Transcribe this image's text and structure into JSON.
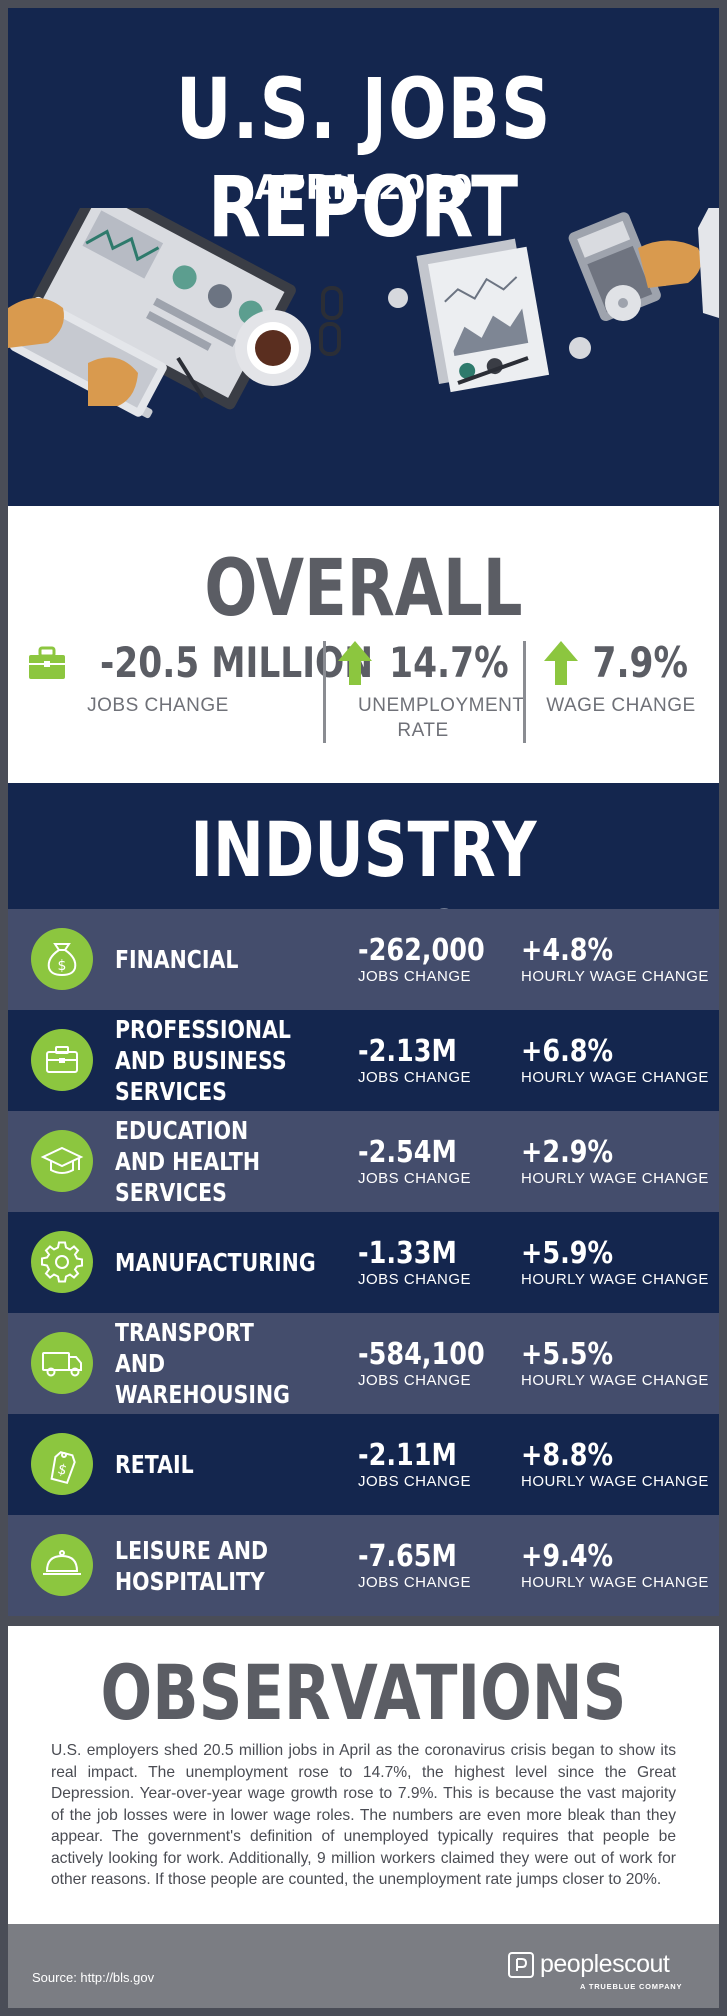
{
  "header": {
    "title": "U.S. JOBS REPORT",
    "subtitle": "APRIL 2020"
  },
  "overall": {
    "title": "OVERALL",
    "stats": [
      {
        "value": "-20.5 MILLION",
        "label": "JOBS CHANGE",
        "icon": "briefcase-icon"
      },
      {
        "value": "14.7%",
        "label": "UNEMPLOYMENT RATE",
        "icon": "arrow-up-icon"
      },
      {
        "value": "7.9%",
        "label": "WAGE CHANGE",
        "icon": "arrow-up-icon"
      }
    ]
  },
  "industry": {
    "title": "INDUSTRY BREAKDOWN",
    "jobs_label": "JOBS CHANGE",
    "wage_label": "HOURLY WAGE CHANGE",
    "rows": [
      {
        "name": "FINANCIAL",
        "jobs": "-262,000",
        "wage": "+4.8%",
        "icon": "money-bag-icon"
      },
      {
        "name": "PROFESSIONAL AND BUSINESS SERVICES",
        "jobs": "-2.13M",
        "wage": "+6.8%",
        "icon": "briefcase-icon"
      },
      {
        "name": "EDUCATION AND HEALTH SERVICES",
        "jobs": "-2.54M",
        "wage": "+2.9%",
        "icon": "graduation-cap-icon"
      },
      {
        "name": "MANUFACTURING",
        "jobs": "-1.33M",
        "wage": "+5.9%",
        "icon": "gear-icon"
      },
      {
        "name": "TRANSPORT AND WAREHOUSING",
        "jobs": "-584,100",
        "wage": "+5.5%",
        "icon": "truck-icon"
      },
      {
        "name": "RETAIL",
        "jobs": "-2.11M",
        "wage": "+8.8%",
        "icon": "price-tag-icon"
      },
      {
        "name": "LEISURE AND HOSPITALITY",
        "jobs": "-7.65M",
        "wage": "+9.4%",
        "icon": "cloche-icon"
      }
    ]
  },
  "observations": {
    "title": "OBSERVATIONS",
    "text": "U.S. employers shed 20.5 million jobs in April as the coronavirus crisis began to show its real impact. The unemployment rose to 14.7%, the highest level since the Great Depression. Year-over-year wage growth rose to 7.9%. This is because the vast majority of the job losses were in lower wage roles. The numbers are even more bleak than they appear. The government's definition of unemployed typically requires that people be actively looking for work. Additionally, 9 million workers claimed they were out of work for other reasons. If those people are counted, the unemployment rate jumps closer to 20%."
  },
  "footer": {
    "source": "Source: http://bls.gov",
    "logo": "peoplescout",
    "logo_tagline": "A TRUEBLUE COMPANY"
  },
  "colors": {
    "navy": "#14264e",
    "slate": "#444d6c",
    "green": "#8cc63f",
    "gray_text": "#5b5d64",
    "footer_gray": "#7b7d83"
  }
}
